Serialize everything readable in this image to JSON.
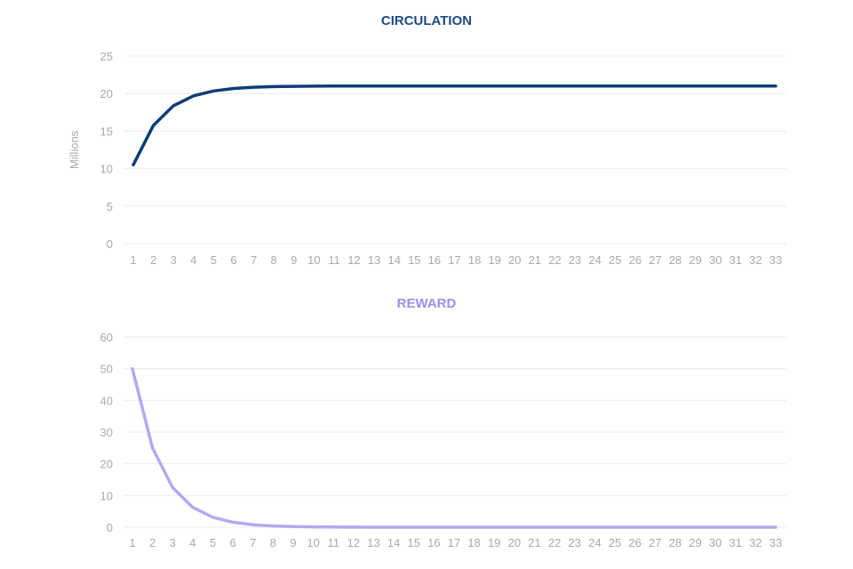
{
  "chart_data": [
    {
      "type": "line",
      "title": "CIRCULATION",
      "title_color": "#1f4a80",
      "line_color": "#0d3c78",
      "ylabel": "Millions",
      "xlabel": "",
      "ylim": [
        0,
        25
      ],
      "yticks": [
        0,
        5,
        10,
        15,
        20,
        25
      ],
      "grid": true,
      "x": [
        1,
        2,
        3,
        4,
        5,
        6,
        7,
        8,
        9,
        10,
        11,
        12,
        13,
        14,
        15,
        16,
        17,
        18,
        19,
        20,
        21,
        22,
        23,
        24,
        25,
        26,
        27,
        28,
        29,
        30,
        31,
        32,
        33
      ],
      "values": [
        10.5,
        15.75,
        18.38,
        19.69,
        20.34,
        20.67,
        20.84,
        20.92,
        20.96,
        20.98,
        20.99,
        20.99,
        21,
        21,
        21,
        21,
        21,
        21,
        21,
        21,
        21,
        21,
        21,
        21,
        21,
        21,
        21,
        21,
        21,
        21,
        21,
        21,
        21
      ]
    },
    {
      "type": "line",
      "title": "REWARD",
      "title_color": "#a08ee6",
      "line_color": "#b6a8ee",
      "ylabel": "",
      "xlabel": "",
      "ylim": [
        0,
        60
      ],
      "yticks": [
        0,
        10,
        20,
        30,
        40,
        50,
        60
      ],
      "grid": true,
      "x": [
        1,
        2,
        3,
        4,
        5,
        6,
        7,
        8,
        9,
        10,
        11,
        12,
        13,
        14,
        15,
        16,
        17,
        18,
        19,
        20,
        21,
        22,
        23,
        24,
        25,
        26,
        27,
        28,
        29,
        30,
        31,
        32,
        33
      ],
      "values": [
        50,
        25,
        12.5,
        6.25,
        3.13,
        1.56,
        0.78,
        0.39,
        0.2,
        0.1,
        0.05,
        0.02,
        0.01,
        0.01,
        0,
        0,
        0,
        0,
        0,
        0,
        0,
        0,
        0,
        0,
        0,
        0,
        0,
        0,
        0,
        0,
        0,
        0,
        0
      ]
    }
  ]
}
